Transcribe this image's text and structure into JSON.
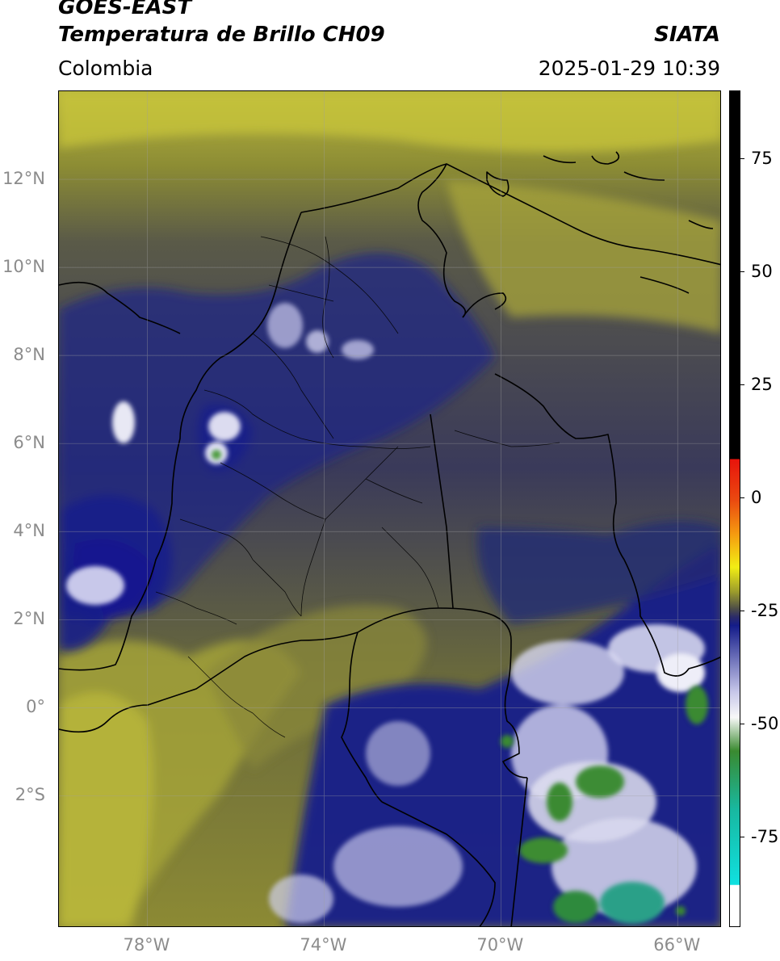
{
  "header": {
    "title_line1": "GOES-EAST",
    "title_line2": "Temperatura de Brillo CH09",
    "organization": "SIATA",
    "region": "Colombia",
    "timestamp": "2025-01-29 10:39"
  },
  "map": {
    "lat_labels": [
      "12°N",
      "10°N",
      "8°N",
      "6°N",
      "4°N",
      "2°N",
      "0°",
      "2°S"
    ],
    "lon_labels": [
      "78°W",
      "74°W",
      "70°W",
      "66°W"
    ],
    "extent": {
      "lon_min": -80,
      "lon_max": -65,
      "lat_min": -5,
      "lat_max": 14
    },
    "gridlines": true
  },
  "colorbar": {
    "labels": [
      "75",
      "50",
      "25",
      "0",
      "-25",
      "-50",
      "-75"
    ],
    "range": [
      -95,
      90
    ],
    "colors": {
      "black": "#000000",
      "red": "#e8140c",
      "orange": "#f59a10",
      "yellow": "#f2ee14",
      "olive": "#8c8c2e",
      "dark_olive": "#4c4c48",
      "navy": "#141c8a",
      "light_blue": "#c8c8ea",
      "white": "#f8f8f8",
      "green": "#3a8a30",
      "teal": "#18b8a0",
      "cyan": "#10e0e0"
    }
  }
}
